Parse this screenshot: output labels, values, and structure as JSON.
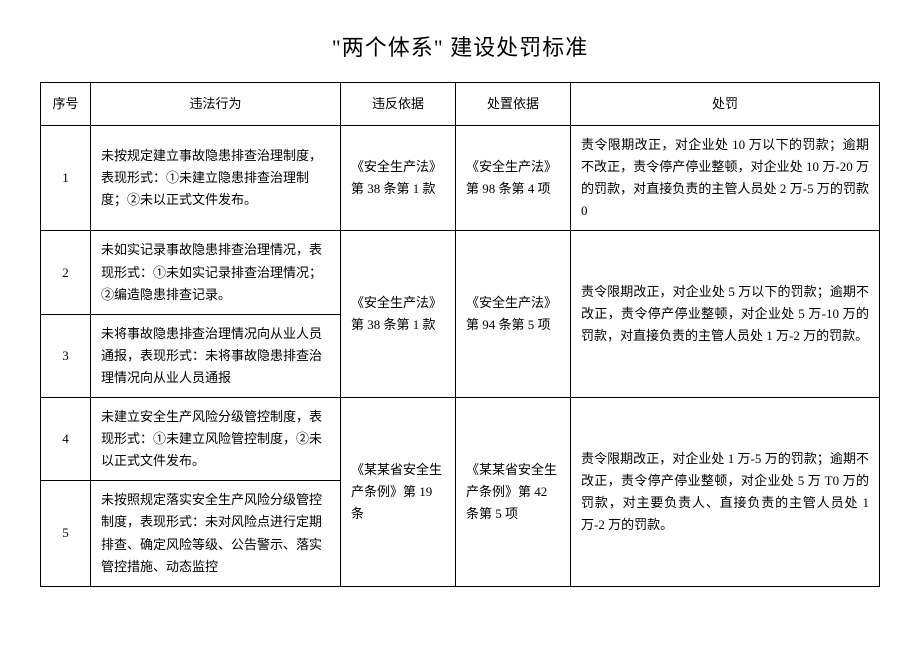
{
  "title": "\"两个体系\" 建设处罚标准",
  "headers": {
    "num": "序号",
    "act": "违法行为",
    "basis1": "违反依据",
    "basis2": "处置依据",
    "penalty": "处罚"
  },
  "rows": {
    "r1": {
      "num": "1",
      "act": "未按规定建立事故隐患排查治理制度，表现形式：①未建立隐患排查治理制度；②未以正式文件发布。",
      "basis1": "《安全生产法》第 38 条第 1 款",
      "basis2": "《安全生产法》第 98 条第 4 项",
      "penalty": "责令限期改正，对企业处 10 万以下的罚款；逾期不改正，责令停产停业整顿，对企业处 10 万-20 万的罚款，对直接负责的主管人员处 2 万-5 万的罚款 0"
    },
    "r2": {
      "num": "2",
      "act": "未如实记录事故隐患排查治理情况，表现形式：①未如实记录排查治理情况；②编造隐患排查记录。"
    },
    "r3": {
      "num": "3",
      "act": "未将事故隐患排查治理情况向从业人员通报，表现形式：未将事故隐患排查治理情况向从业人员通报",
      "basis1": "《安全生产法》第 38 条第 1 款",
      "basis2": "《安全生产法》第 94 条第 5 项",
      "penalty": "责令限期改正，对企业处 5 万以下的罚款；逾期不改正，责令停产停业整顿，对企业处 5 万-10 万的罚款，对直接负责的主管人员处 1 万-2 万的罚款。"
    },
    "r4": {
      "num": "4",
      "act": "未建立安全生产风险分级管控制度，表现形式：①未建立风险管控制度，②未以正式文件发布。"
    },
    "r5": {
      "num": "5",
      "act": "未按照规定落实安全生产风险分级管控制度，表现形式：未对风险点进行定期排查、确定风险等级、公告警示、落实管控措施、动态监控",
      "basis1": "《某某省安全生产条例》第 19 条",
      "basis2": "《某某省安全生产条例》第 42 条第 5 项",
      "penalty": "责令限期改正，对企业处 1 万-5 万的罚款；逾期不改正，责令停产停业整顿，对企业处 5 万 T0 万的罚款，对主要负责人、直接负责的主管人员处 1 万-2 万的罚款。"
    }
  }
}
